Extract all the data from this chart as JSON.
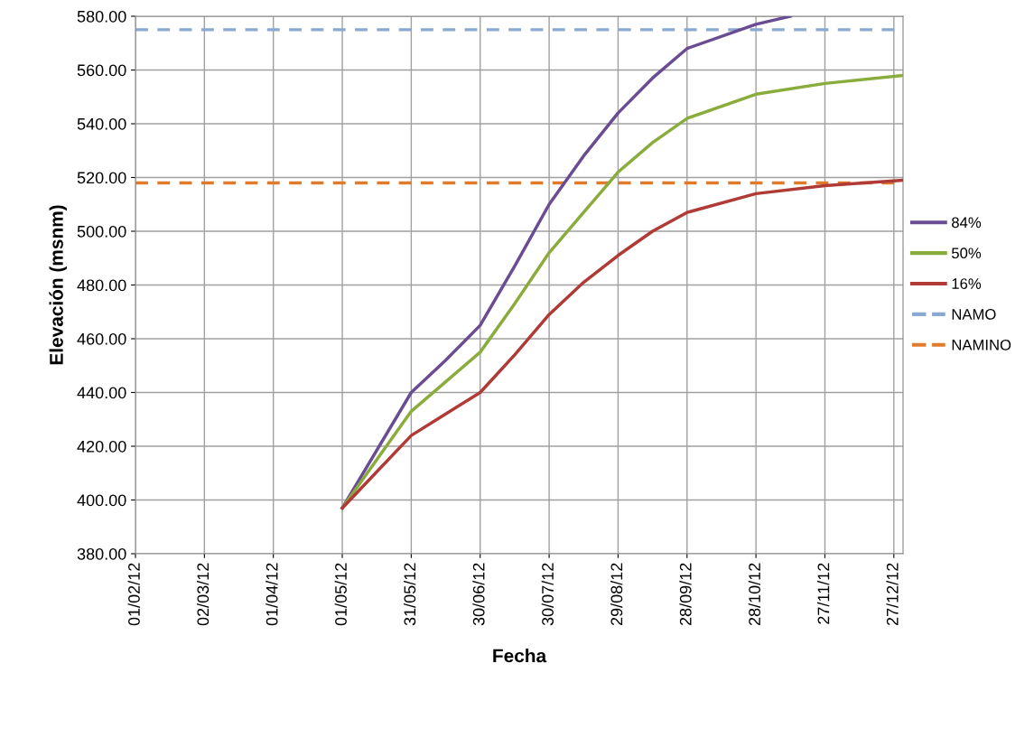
{
  "chart_data": {
    "type": "line",
    "xlabel": "Fecha",
    "ylabel": "Elevación (msnm)",
    "xlim": [
      "2012-02-01",
      "2012-12-31"
    ],
    "xticks": [
      {
        "value": "2012-02-01",
        "label": "01/02/12"
      },
      {
        "value": "2012-03-02",
        "label": "02/03/12"
      },
      {
        "value": "2012-04-01",
        "label": "01/04/12"
      },
      {
        "value": "2012-05-01",
        "label": "01/05/12"
      },
      {
        "value": "2012-05-31",
        "label": "31/05/12"
      },
      {
        "value": "2012-06-30",
        "label": "30/06/12"
      },
      {
        "value": "2012-07-30",
        "label": "30/07/12"
      },
      {
        "value": "2012-08-29",
        "label": "29/08/12"
      },
      {
        "value": "2012-09-28",
        "label": "28/09/12"
      },
      {
        "value": "2012-10-28",
        "label": "28/10/12"
      },
      {
        "value": "2012-11-27",
        "label": "27/11/12"
      },
      {
        "value": "2012-12-27",
        "label": "27/12/12"
      }
    ],
    "ylim": [
      380,
      580
    ],
    "yticks": [
      {
        "value": 380,
        "label": "380.00"
      },
      {
        "value": 400,
        "label": "400.00"
      },
      {
        "value": 420,
        "label": "420.00"
      },
      {
        "value": 440,
        "label": "440.00"
      },
      {
        "value": 460,
        "label": "460.00"
      },
      {
        "value": 480,
        "label": "480.00"
      },
      {
        "value": 500,
        "label": "500.00"
      },
      {
        "value": 520,
        "label": "520.00"
      },
      {
        "value": 540,
        "label": "540.00"
      },
      {
        "value": 560,
        "label": "560.00"
      },
      {
        "value": 580,
        "label": "580.00"
      }
    ],
    "grid": true,
    "legend": "right",
    "marker": "none",
    "line_style": "solid",
    "series": [
      {
        "name": "84%",
        "color": "#6a4c93",
        "x": [
          "2012-05-01",
          "2012-05-31",
          "2012-06-15",
          "2012-06-30",
          "2012-07-15",
          "2012-07-30",
          "2012-08-14",
          "2012-08-29",
          "2012-09-13",
          "2012-09-28",
          "2012-10-28",
          "2012-11-12"
        ],
        "values": [
          397,
          440,
          452,
          465,
          487,
          510,
          528,
          544,
          557,
          568,
          577,
          580
        ]
      },
      {
        "name": "50%",
        "color": "#8aac3c",
        "x": [
          "2012-05-01",
          "2012-05-31",
          "2012-06-15",
          "2012-06-30",
          "2012-07-15",
          "2012-07-30",
          "2012-08-14",
          "2012-08-29",
          "2012-09-13",
          "2012-09-28",
          "2012-10-28",
          "2012-11-27",
          "2012-12-31"
        ],
        "values": [
          397,
          433,
          444,
          455,
          473,
          492,
          507,
          522,
          533,
          542,
          551,
          555,
          558
        ]
      },
      {
        "name": "16%",
        "color": "#b03a36",
        "x": [
          "2012-05-01",
          "2012-05-31",
          "2012-06-15",
          "2012-06-30",
          "2012-07-15",
          "2012-07-30",
          "2012-08-14",
          "2012-08-29",
          "2012-09-13",
          "2012-09-28",
          "2012-10-28",
          "2012-11-27",
          "2012-12-31"
        ],
        "values": [
          397,
          424,
          432,
          440,
          454,
          469,
          481,
          491,
          500,
          507,
          514,
          517,
          519
        ]
      }
    ],
    "ref_lines": [
      {
        "axis": "y",
        "value": 575,
        "label": "NAMO",
        "color": "#89a8d2",
        "line_style": "dashed"
      },
      {
        "axis": "y",
        "value": 518,
        "label": "NAMINO",
        "color": "#e07b2c",
        "line_style": "dashed"
      }
    ]
  }
}
